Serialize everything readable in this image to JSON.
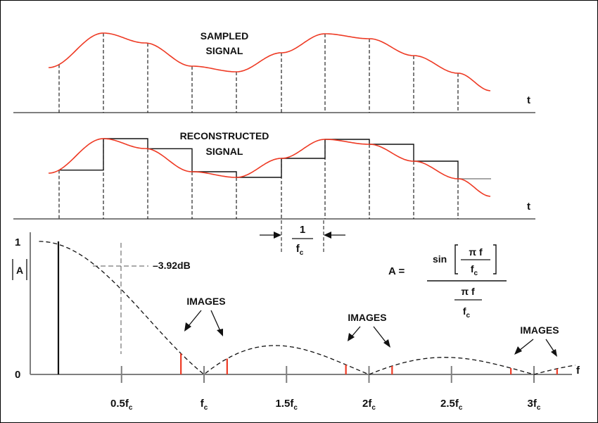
{
  "panel1": {
    "label_line1": "SAMPLED",
    "label_line2": "SIGNAL",
    "axis_label": "t"
  },
  "panel2": {
    "label_line1": "RECONSTRUCTED",
    "label_line2": "SIGNAL",
    "axis_label": "t"
  },
  "period": {
    "numerator": "1",
    "denominator": "f",
    "denominator_sub": "c"
  },
  "spectrum": {
    "y_top": "1",
    "y_zero": "0",
    "y_axis_label": "A",
    "x_axis_label": "f",
    "db_label": "–3.92dB",
    "images_label": "IMAGES",
    "ticks": [
      {
        "base": "0.5f",
        "sub": "c"
      },
      {
        "base": "f",
        "sub": "c"
      },
      {
        "base": "1.5f",
        "sub": "c"
      },
      {
        "base": "2f",
        "sub": "c"
      },
      {
        "base": "2.5f",
        "sub": "c"
      },
      {
        "base": "3f",
        "sub": "c"
      }
    ]
  },
  "formula": {
    "lhs": "A =",
    "sin": "sin",
    "pi_f": "π f",
    "f": "f",
    "c": "c"
  },
  "colors": {
    "signal": "#ee3a24",
    "image_line": "#ee3a24",
    "axis": "#7f7f7f",
    "ink": "#000000"
  },
  "chart_data": {
    "type": "line",
    "series": [
      {
        "values": [
          1.0,
          0.637,
          0.0,
          0.212,
          0.0,
          0.127,
          0.0
        ]
      }
    ],
    "x": [
      0,
      0.5,
      1,
      1.5,
      2,
      2.5,
      3
    ],
    "ylim": [
      0,
      1
    ],
    "annotations": [
      "–3.92dB",
      "IMAGES",
      "IMAGES",
      "IMAGES"
    ]
  }
}
